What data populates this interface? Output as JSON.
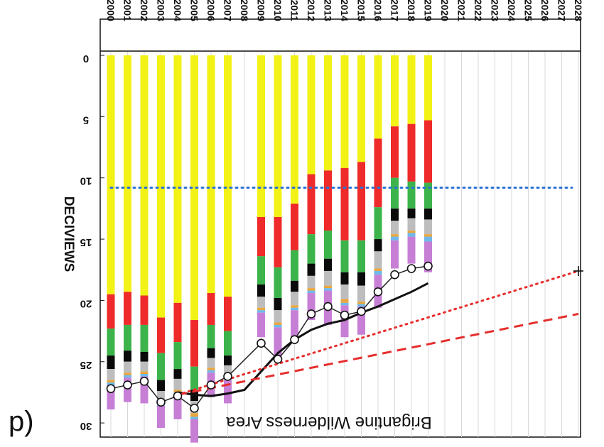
{
  "panel_label": "p)",
  "chart_data": {
    "type": "bar",
    "orientation": "inverted",
    "title": "Brigantine Wilderness Area",
    "ylabel": "DECIVIEWS",
    "ylim": [
      0,
      30
    ],
    "y_ticks": [
      0,
      5,
      10,
      15,
      20,
      25,
      30
    ],
    "x_ticks": [
      "2000",
      "2001",
      "2002",
      "2003",
      "2004",
      "2005",
      "2006",
      "2007",
      "2008",
      "2009",
      "2010",
      "2011",
      "2012",
      "2013",
      "2014",
      "2015",
      "2016",
      "2017",
      "2018",
      "2019",
      "2020",
      "2021",
      "2022",
      "2023",
      "2024",
      "2025",
      "2026",
      "2027",
      "2028"
    ],
    "grid": true,
    "bar_years": [
      "2000",
      "2001",
      "2002",
      "2003",
      "2004",
      "2005",
      "2006",
      "2007",
      "2009",
      "2010",
      "2011",
      "2012",
      "2013",
      "2014",
      "2015",
      "2016",
      "2017",
      "2018",
      "2019"
    ],
    "components": [
      "purple",
      "light-blue",
      "orange",
      "gray",
      "black",
      "green",
      "red",
      "yellow"
    ],
    "component_colors": {
      "purple": "#c77fd6",
      "light-blue": "#6fb9ea",
      "orange": "#e9a63d",
      "gray": "#bdbdbd",
      "black": "#0a0a0a",
      "green": "#3cb44b",
      "red": "#ee2a2a",
      "yellow": "#f2f216"
    },
    "segments": [
      [
        2.0,
        0.2,
        0.2,
        0.9,
        1.1,
        2.2,
        2.8,
        19.5
      ],
      [
        2.0,
        0.2,
        0.2,
        0.9,
        0.9,
        2.1,
        2.7,
        19.3
      ],
      [
        2.2,
        0.2,
        0.2,
        0.8,
        0.8,
        2.2,
        2.4,
        19.6
      ],
      [
        1.8,
        0.2,
        0.2,
        0.8,
        0.9,
        2.2,
        2.9,
        21.4
      ],
      [
        2.0,
        0.2,
        0.2,
        0.9,
        0.8,
        2.2,
        3.2,
        20.2
      ],
      [
        1.9,
        0.2,
        0.3,
        1.0,
        0.9,
        1.9,
        3.8,
        21.6
      ],
      [
        2.0,
        0.2,
        0.2,
        0.8,
        0.8,
        1.9,
        2.6,
        19.4
      ],
      [
        1.9,
        0.2,
        0.2,
        0.8,
        0.8,
        2.0,
        2.8,
        19.7
      ],
      [
        2.0,
        0.2,
        0.2,
        0.9,
        1.0,
        2.3,
        3.2,
        13.2
      ],
      [
        2.4,
        0.2,
        0.2,
        1.0,
        1.0,
        2.5,
        4.1,
        13.2
      ],
      [
        2.6,
        0.2,
        0.2,
        1.1,
        0.9,
        2.5,
        3.8,
        12.1
      ],
      [
        2.2,
        0.2,
        0.2,
        1.0,
        1.0,
        2.4,
        4.9,
        9.7
      ],
      [
        2.8,
        0.2,
        0.2,
        1.2,
        1.0,
        2.3,
        4.9,
        9.4
      ],
      [
        2.6,
        0.2,
        0.3,
        1.2,
        1.0,
        2.6,
        5.9,
        9.2
      ],
      [
        2.3,
        0.2,
        0.2,
        1.3,
        1.1,
        2.6,
        6.4,
        8.7
      ],
      [
        2.7,
        0.3,
        0.2,
        1.4,
        1.0,
        2.6,
        5.6,
        6.8
      ],
      [
        2.3,
        0.3,
        0.2,
        1.1,
        1.0,
        2.5,
        4.2,
        5.8
      ],
      [
        2.2,
        0.3,
        0.2,
        1.0,
        0.8,
        2.2,
        4.7,
        5.6
      ],
      [
        2.5,
        0.4,
        0.2,
        1.2,
        0.9,
        2.1,
        5.1,
        5.3
      ]
    ],
    "series": [
      {
        "type": "line-with-circles",
        "x": [
          "2000",
          "2001",
          "2002",
          "2003",
          "2004",
          "2005",
          "2006",
          "2007",
          "2009",
          "2010",
          "2011",
          "2012",
          "2013",
          "2014",
          "2015",
          "2016",
          "2017",
          "2018",
          "2019"
        ],
        "values": [
          27.2,
          26.9,
          26.6,
          28.3,
          27.8,
          28.8,
          26.9,
          26.2,
          23.5,
          24.8,
          23.2,
          21.1,
          20.5,
          21.2,
          20.9,
          19.3,
          17.9,
          17.4,
          17.2
        ]
      },
      {
        "type": "line",
        "x": [
          "2004",
          "2005",
          "2006",
          "2007",
          "2008",
          "2009",
          "2010",
          "2011",
          "2012",
          "2013",
          "2014",
          "2015",
          "2016",
          "2017",
          "2018",
          "2019"
        ],
        "values": [
          27.5,
          27.7,
          27.8,
          27.6,
          27.3,
          25.8,
          24.3,
          23.2,
          22.4,
          21.9,
          21.6,
          21.0,
          20.5,
          19.9,
          19.3,
          18.6
        ]
      },
      {
        "type": "line-dotted",
        "x": [
          "2004",
          "2028"
        ],
        "values": [
          27.7,
          17.6
        ]
      },
      {
        "type": "line-dashed",
        "x": [
          "2004",
          "2028"
        ],
        "values": [
          27.7,
          21.1
        ]
      },
      {
        "type": "hline-dotted",
        "value": 10.8
      }
    ],
    "end_marker": {
      "x": "2028",
      "value": 17.6,
      "symbol": "+"
    }
  }
}
